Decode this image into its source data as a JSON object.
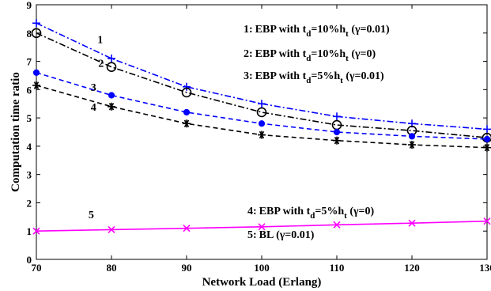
{
  "chart_data": {
    "type": "line",
    "title": "",
    "xlabel": "Network Load (Erlang)",
    "ylabel": "Computation time ratio",
    "xlim": [
      70,
      130
    ],
    "ylim": [
      0,
      9
    ],
    "x_ticks": [
      "70",
      "80",
      "90",
      "100",
      "110",
      "120",
      "130"
    ],
    "y_ticks": [
      "0",
      "1",
      "2",
      "3",
      "4",
      "5",
      "6",
      "7",
      "8",
      "9"
    ],
    "grid": false,
    "x": [
      70,
      80,
      90,
      100,
      110,
      120,
      130
    ],
    "series": [
      {
        "id": "1",
        "number_label": "1",
        "legend": {
          "num": "1:",
          "main": "EBP with t",
          "sub1": "d",
          "mid": "=10%h",
          "sub2": "t",
          "tail": " (γ=0.01)"
        },
        "color": "#0000ff",
        "dash": "dashdot",
        "marker": "plus",
        "values": [
          8.35,
          7.1,
          6.1,
          5.5,
          5.05,
          4.8,
          4.6
        ]
      },
      {
        "id": "2",
        "number_label": "2",
        "legend": {
          "num": "2:",
          "main": "EBP with t",
          "sub1": "d",
          "mid": "=10%h",
          "sub2": "t",
          "tail": " (γ=0)"
        },
        "color": "#000000",
        "dash": "dashdot",
        "marker": "circle",
        "values": [
          8.0,
          6.8,
          5.9,
          5.2,
          4.75,
          4.55,
          4.3
        ]
      },
      {
        "id": "3",
        "number_label": "3",
        "legend": {
          "num": "3:",
          "main": "EBP with t",
          "sub1": "d",
          "mid": "=5%h",
          "sub2": "t",
          "tail": " (γ=0.01)"
        },
        "color": "#0000ff",
        "dash": "dashed",
        "marker": "dot",
        "values": [
          6.6,
          5.8,
          5.2,
          4.8,
          4.5,
          4.35,
          4.25
        ]
      },
      {
        "id": "4",
        "number_label": "4",
        "legend": {
          "num": "4:",
          "main": "EBP with t",
          "sub1": "d",
          "mid": "=5%h",
          "sub2": "t",
          "tail": " (γ=0)"
        },
        "color": "#000000",
        "dash": "dashed",
        "marker": "asterisk",
        "values": [
          6.15,
          5.4,
          4.8,
          4.4,
          4.2,
          4.05,
          3.95
        ]
      },
      {
        "id": "5",
        "number_label": "5",
        "legend": {
          "num": "5:",
          "main": "BL (γ=0.01)",
          "sub1": "",
          "mid": "",
          "sub2": "",
          "tail": ""
        },
        "color": "#ff00ff",
        "dash": "solid",
        "marker": "x",
        "values": [
          1.0,
          1.05,
          1.1,
          1.15,
          1.22,
          1.28,
          1.35
        ]
      }
    ]
  }
}
